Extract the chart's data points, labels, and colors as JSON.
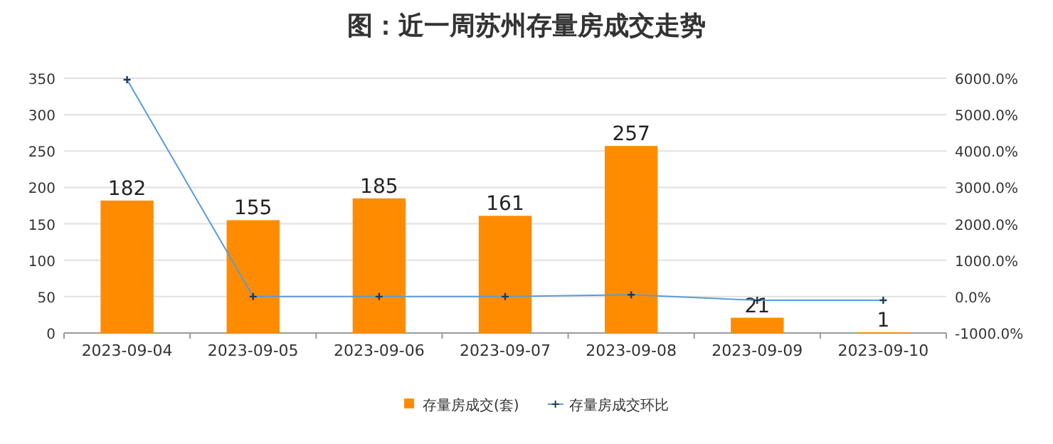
{
  "chart_data": {
    "type": "bar",
    "title": "图：近一周苏州存量房成交走势",
    "categories": [
      "2023-09-04",
      "2023-09-05",
      "2023-09-06",
      "2023-09-07",
      "2023-09-08",
      "2023-09-09",
      "2023-09-10"
    ],
    "series": [
      {
        "name": "存量房成交(套)",
        "color": "#ff8c00",
        "values": [
          182,
          155,
          185,
          161,
          257,
          21,
          1
        ],
        "value_labels": [
          "182",
          "155",
          "185",
          "161",
          "257",
          "21",
          "1"
        ]
      },
      {
        "name": "存量房成交环比",
        "type": "line",
        "axis": "y2",
        "color": "#5b9bd5",
        "marker": "cross",
        "values": [
          5960,
          0,
          0,
          0,
          50,
          -100,
          -100
        ]
      }
    ],
    "ylim": [
      0,
      350
    ],
    "yticks": [
      0,
      50,
      100,
      150,
      200,
      250,
      300,
      350
    ],
    "y2lim": [
      -1000,
      6000
    ],
    "y2ticks": [
      {
        "value": -1000,
        "label": "-1000.0%"
      },
      {
        "value": 0,
        "label": "0.0%"
      },
      {
        "value": 1000,
        "label": "1000.0%"
      },
      {
        "value": 2000,
        "label": "2000.0%"
      },
      {
        "value": 3000,
        "label": "3000.0%"
      },
      {
        "value": 4000,
        "label": "4000.0%"
      },
      {
        "value": 5000,
        "label": "5000.0%"
      },
      {
        "value": 6000,
        "label": "6000.0%"
      }
    ],
    "grid": "y",
    "legend": "bottom"
  }
}
